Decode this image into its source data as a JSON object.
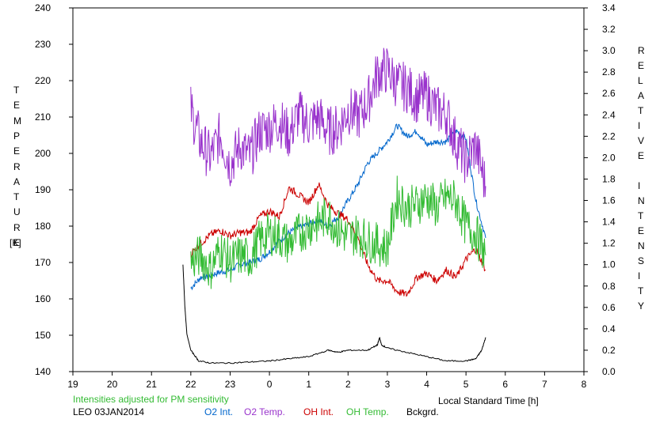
{
  "chart_data": {
    "type": "line",
    "xlabel": "Local Standard Time [h]",
    "ylabel_left": "TEMPERATURE",
    "ylabel_left_unit": "[K]",
    "ylabel_right": "RELATIVE INTENSITY",
    "x_ticks": [
      "19",
      "20",
      "21",
      "22",
      "23",
      "0",
      "1",
      "2",
      "3",
      "4",
      "5",
      "6",
      "7",
      "8"
    ],
    "y_left_ticks": [
      "140",
      "150",
      "160",
      "170",
      "180",
      "190",
      "200",
      "210",
      "220",
      "230",
      "240"
    ],
    "y_right_ticks": [
      "0.0",
      "0.2",
      "0.4",
      "0.6",
      "0.8",
      "1.0",
      "1.2",
      "1.4",
      "1.6",
      "1.8",
      "2.0",
      "2.2",
      "2.4",
      "2.6",
      "2.8",
      "3.0",
      "3.2",
      "3.4"
    ],
    "xlim": [
      19,
      32
    ],
    "ylim_left": [
      140,
      240
    ],
    "ylim_right": [
      0.0,
      3.4
    ],
    "note": "Intensities adjusted for PM sensitivity",
    "site_date": "LEO 03JAN2014",
    "series": [
      {
        "name": "O2 Int.",
        "color": "#0066cc",
        "axis": "right",
        "x": [
          22.0,
          22.25,
          22.5,
          22.75,
          23.0,
          23.25,
          23.5,
          23.75,
          24.0,
          24.25,
          24.5,
          24.75,
          25.0,
          25.25,
          25.5,
          25.75,
          26.0,
          26.25,
          26.5,
          26.75,
          27.0,
          27.25,
          27.5,
          27.75,
          28.0,
          28.25,
          28.5,
          28.75,
          29.0,
          29.25,
          29.5
        ],
        "y": [
          0.78,
          0.88,
          0.9,
          0.93,
          0.95,
          1.0,
          1.02,
          1.05,
          1.12,
          1.22,
          1.3,
          1.35,
          1.38,
          1.42,
          1.36,
          1.45,
          1.6,
          1.75,
          1.95,
          2.05,
          2.15,
          2.3,
          2.2,
          2.25,
          2.12,
          2.15,
          2.15,
          2.25,
          2.18,
          1.6,
          1.25
        ]
      },
      {
        "name": "O2 Temp.",
        "color": "#9933cc",
        "axis": "left",
        "x": [
          22.0,
          22.25,
          22.5,
          22.75,
          23.0,
          23.25,
          23.5,
          23.75,
          24.0,
          24.25,
          24.5,
          24.75,
          25.0,
          25.25,
          25.5,
          25.75,
          26.0,
          26.25,
          26.5,
          26.75,
          27.0,
          27.25,
          27.5,
          27.75,
          28.0,
          28.25,
          28.5,
          28.75,
          29.0,
          29.25,
          29.5
        ],
        "y": [
          212,
          203,
          199,
          205,
          197,
          202,
          199,
          206,
          207,
          209,
          205,
          211,
          208,
          210,
          206,
          207,
          212,
          210,
          214,
          222,
          223,
          219,
          218,
          215,
          216,
          212,
          211,
          203,
          198,
          202,
          191
        ]
      },
      {
        "name": "OH Int.",
        "color": "#cc0000",
        "axis": "right",
        "x": [
          22.0,
          22.25,
          22.5,
          22.75,
          23.0,
          23.25,
          23.5,
          23.75,
          24.0,
          24.25,
          24.5,
          24.75,
          25.0,
          25.25,
          25.5,
          25.75,
          26.0,
          26.25,
          26.5,
          26.75,
          27.0,
          27.25,
          27.5,
          27.75,
          28.0,
          28.25,
          28.5,
          28.75,
          29.0,
          29.25,
          29.5
        ],
        "y": [
          1.1,
          1.2,
          1.28,
          1.32,
          1.27,
          1.3,
          1.3,
          1.45,
          1.5,
          1.45,
          1.72,
          1.65,
          1.58,
          1.75,
          1.55,
          1.48,
          1.42,
          1.25,
          1.0,
          0.85,
          0.85,
          0.75,
          0.72,
          0.88,
          0.92,
          0.85,
          0.95,
          0.88,
          1.05,
          1.15,
          0.95
        ]
      },
      {
        "name": "OH Temp.",
        "color": "#33bb33",
        "axis": "left",
        "x": [
          22.0,
          22.25,
          22.5,
          22.75,
          23.0,
          23.25,
          23.5,
          23.75,
          24.0,
          24.25,
          24.5,
          24.75,
          25.0,
          25.25,
          25.5,
          25.75,
          26.0,
          26.25,
          26.5,
          26.75,
          27.0,
          27.25,
          27.5,
          27.75,
          28.0,
          28.25,
          28.5,
          28.75,
          29.0,
          29.25,
          29.5
        ],
        "y": [
          170,
          172,
          168,
          174,
          170,
          172,
          171,
          176,
          178,
          177,
          175,
          178,
          180,
          181,
          183,
          179,
          177,
          178,
          176,
          175,
          174,
          188,
          185,
          186,
          188,
          185,
          188,
          187,
          180,
          178,
          172
        ]
      },
      {
        "name": "Bckgrd.",
        "color": "#000000",
        "axis": "right",
        "x": [
          21.8,
          21.85,
          21.9,
          22.0,
          22.2,
          22.5,
          23.0,
          23.5,
          24.0,
          24.5,
          25.0,
          25.5,
          25.75,
          26.0,
          26.5,
          26.75,
          26.8,
          26.85,
          27.0,
          27.5,
          28.0,
          28.5,
          29.0,
          29.25,
          29.4,
          29.5
        ],
        "y": [
          1.0,
          0.6,
          0.35,
          0.2,
          0.1,
          0.08,
          0.08,
          0.09,
          0.1,
          0.12,
          0.14,
          0.2,
          0.18,
          0.2,
          0.2,
          0.25,
          0.32,
          0.25,
          0.22,
          0.18,
          0.14,
          0.1,
          0.1,
          0.12,
          0.2,
          0.32
        ]
      }
    ]
  }
}
